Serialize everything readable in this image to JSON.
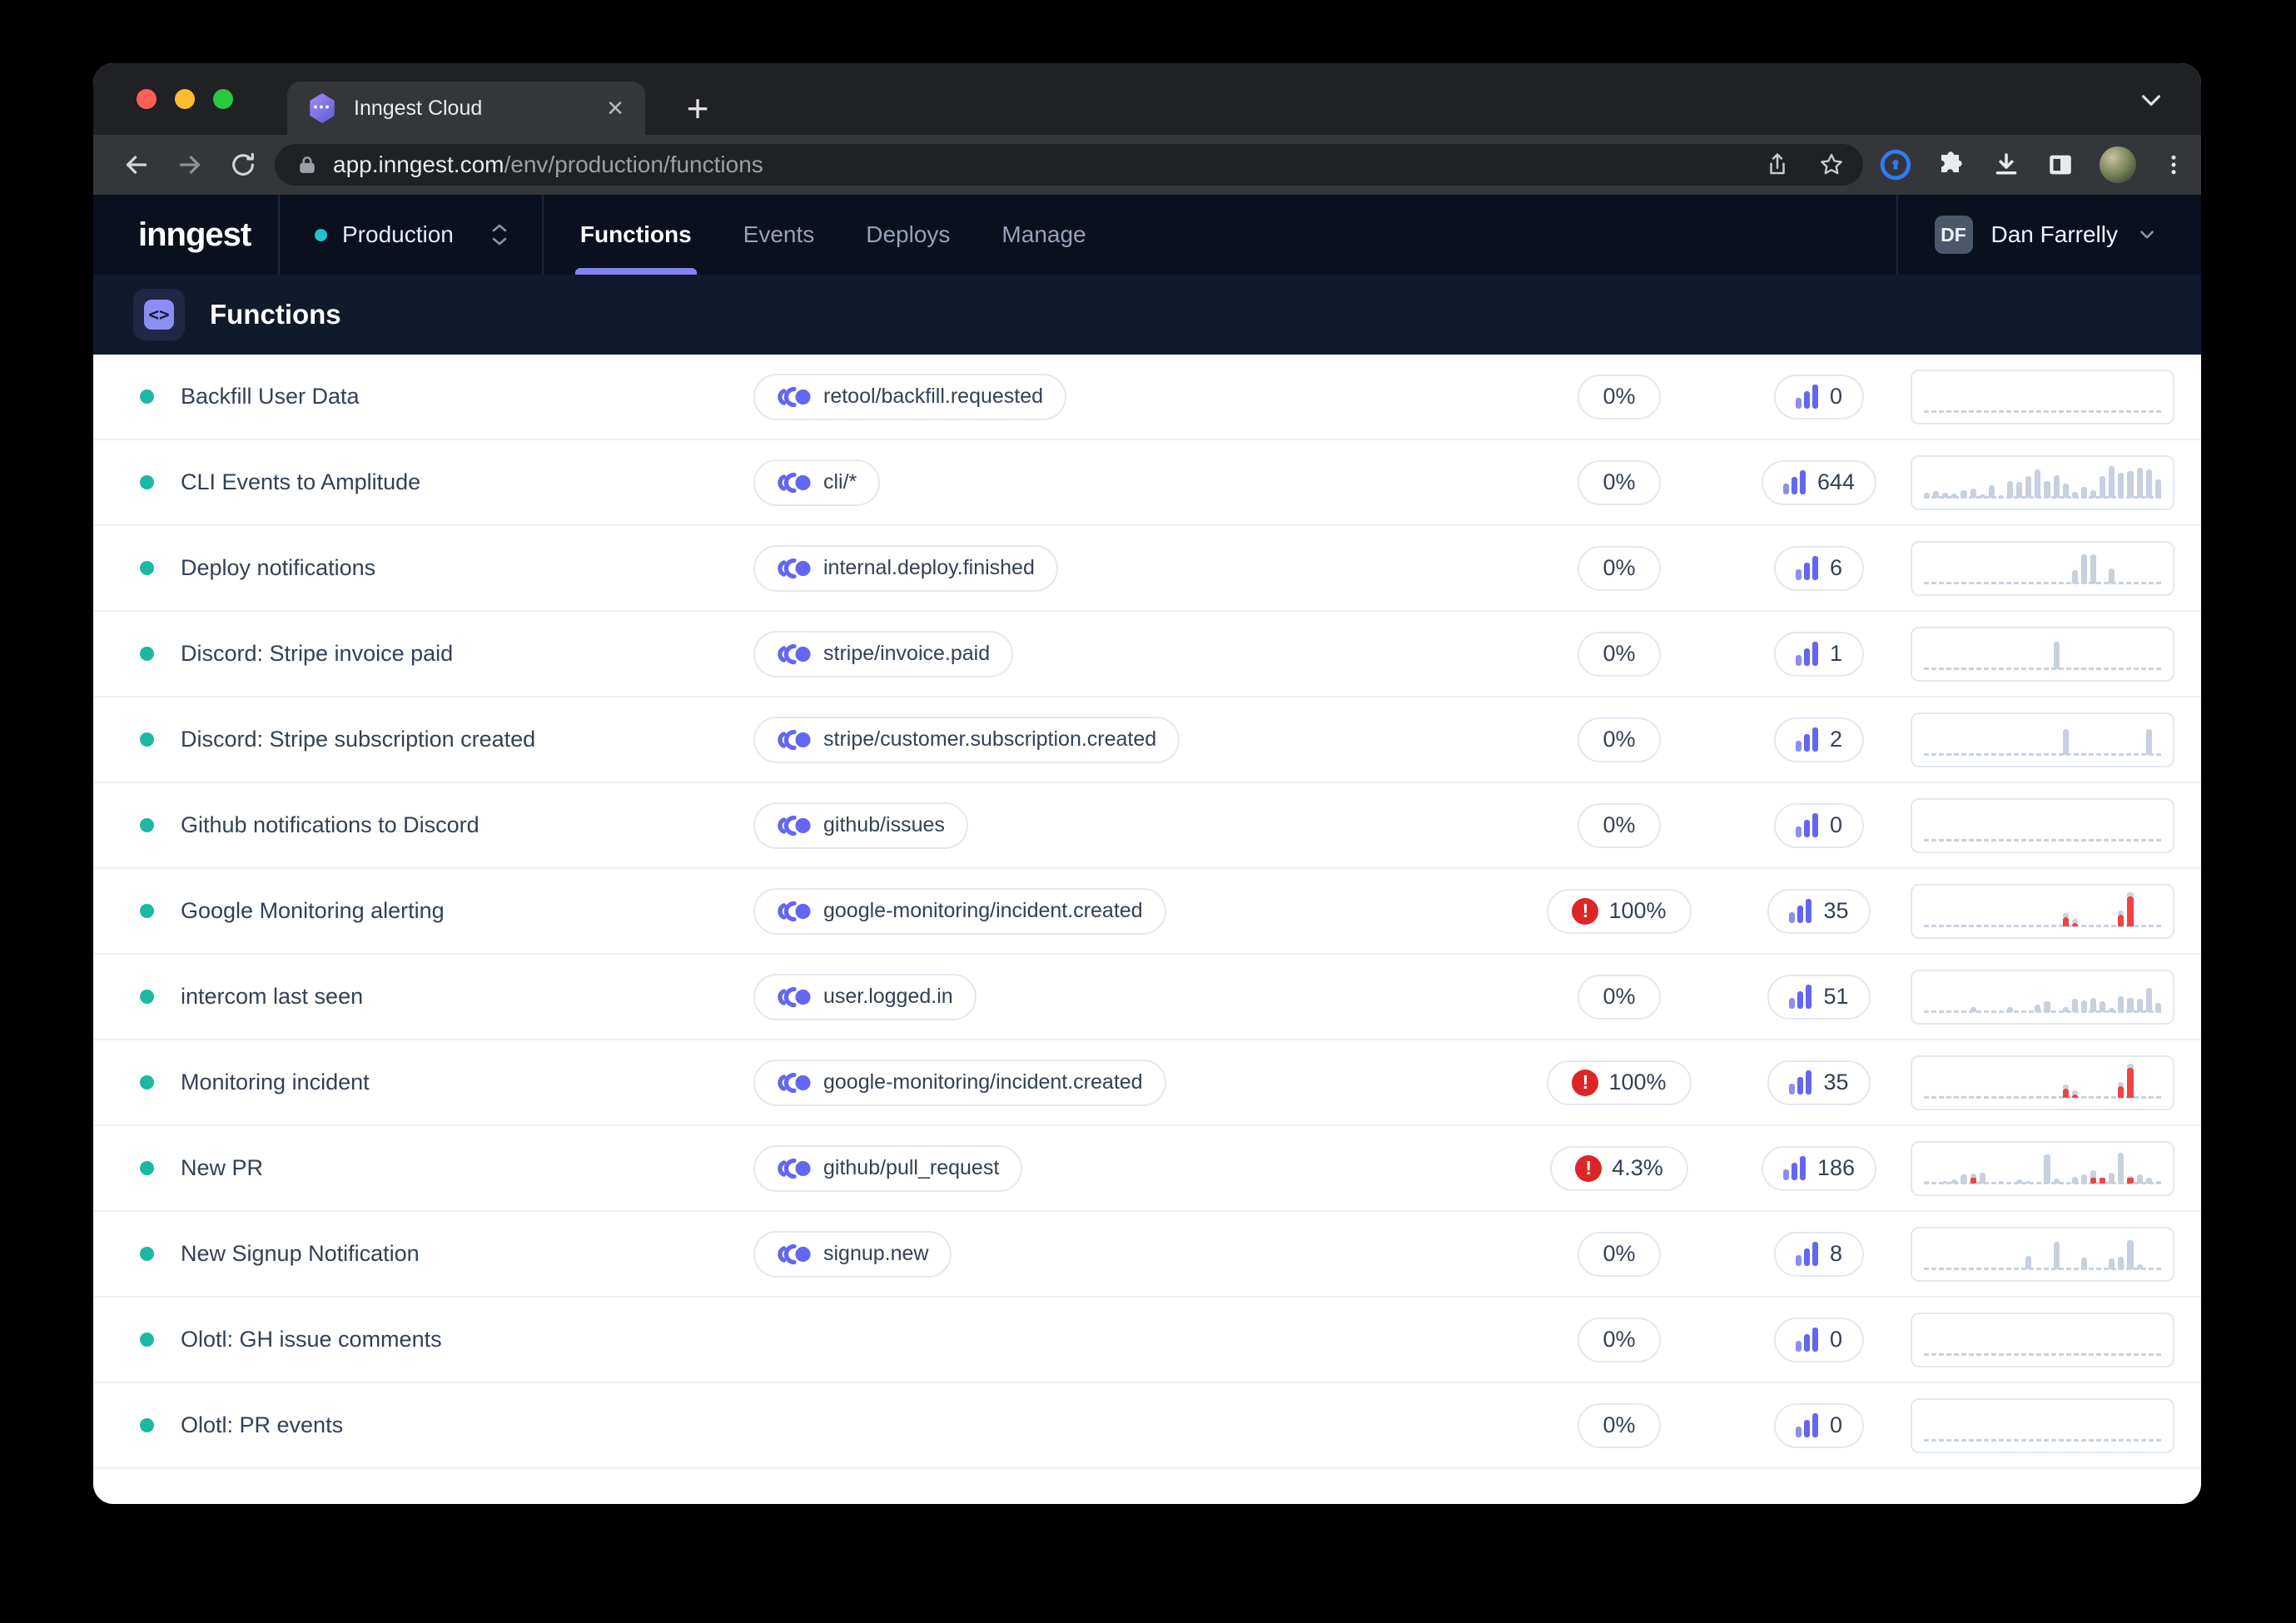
{
  "browser": {
    "tab_title": "Inngest Cloud",
    "url_host": "app.inngest.com",
    "url_path": "/env/production/functions"
  },
  "icons": {
    "close_tab": "×",
    "new_tab": "+",
    "code_glyph": "<>",
    "error_glyph": "!",
    "initials": "DF"
  },
  "header": {
    "logo": "inngest",
    "environment": "Production",
    "nav": [
      {
        "label": "Functions",
        "active": true
      },
      {
        "label": "Events",
        "active": false
      },
      {
        "label": "Deploys",
        "active": false
      },
      {
        "label": "Manage",
        "active": false
      }
    ],
    "user": {
      "initials": "DF",
      "name": "Dan Farrelly"
    }
  },
  "page": {
    "title": "Functions"
  },
  "colors": {
    "accent_indigo": "#6366f1",
    "nav_underline": "#8285f0",
    "status_teal": "#1cb8a0",
    "env_dot": "#1fc3c9",
    "error_red": "#dc2626",
    "spark_fail_red": "#ef4444",
    "spark_gray": "#c7d0de"
  },
  "functions": {
    "rows": [
      {
        "name": "Backfill User Data",
        "event": "retool/backfill.requested",
        "failure_rate": "0%",
        "error": false,
        "count": "0",
        "spark": []
      },
      {
        "name": "CLI Events to Amplitude",
        "event": "cli/*",
        "failure_rate": "0%",
        "error": false,
        "count": "644",
        "spark": [
          14,
          18,
          14,
          10,
          20,
          24,
          8,
          34,
          6,
          46,
          44,
          60,
          80,
          46,
          64,
          40,
          16,
          30,
          20,
          60,
          90,
          70,
          76,
          84,
          80,
          52
        ]
      },
      {
        "name": "Deploy notifications",
        "event": "internal.deploy.finished",
        "failure_rate": "0%",
        "error": false,
        "count": "6",
        "spark": [
          0,
          0,
          0,
          0,
          0,
          0,
          0,
          0,
          0,
          0,
          0,
          0,
          0,
          0,
          0,
          0,
          36,
          82,
          82,
          0,
          42,
          0,
          0,
          0,
          0,
          0
        ]
      },
      {
        "name": "Discord: Stripe invoice paid",
        "event": "stripe/invoice.paid",
        "failure_rate": "0%",
        "error": false,
        "count": "1",
        "spark": [
          0,
          0,
          0,
          0,
          0,
          0,
          0,
          0,
          0,
          0,
          0,
          0,
          0,
          0,
          78,
          0,
          0,
          0,
          0,
          0,
          0,
          0,
          0,
          0,
          0,
          0
        ]
      },
      {
        "name": "Discord: Stripe subscription created",
        "event": "stripe/customer.subscription.created",
        "failure_rate": "0%",
        "error": false,
        "count": "2",
        "spark": [
          0,
          0,
          0,
          0,
          0,
          0,
          0,
          0,
          0,
          0,
          0,
          0,
          0,
          0,
          0,
          72,
          0,
          0,
          0,
          0,
          0,
          0,
          0,
          0,
          72,
          0
        ]
      },
      {
        "name": "Github notifications to Discord",
        "event": "github/issues",
        "failure_rate": "0%",
        "error": false,
        "count": "0",
        "spark": []
      },
      {
        "name": "Google Monitoring alerting",
        "event": "google-monitoring/incident.created",
        "failure_rate": "100%",
        "error": true,
        "count": "35",
        "spark": [
          0,
          0,
          0,
          0,
          0,
          0,
          0,
          0,
          0,
          0,
          0,
          0,
          0,
          0,
          0,
          [
            24,
            "r"
          ],
          [
            8,
            "r"
          ],
          0,
          0,
          0,
          0,
          [
            32,
            "r"
          ],
          [
            85,
            "r"
          ],
          0,
          0,
          0
        ]
      },
      {
        "name": "intercom last seen",
        "event": "user.logged.in",
        "failure_rate": "0%",
        "error": false,
        "count": "51",
        "spark": [
          0,
          0,
          0,
          0,
          0,
          12,
          0,
          0,
          0,
          14,
          0,
          0,
          20,
          30,
          0,
          14,
          38,
          32,
          40,
          30,
          10,
          44,
          40,
          36,
          68,
          24
        ]
      },
      {
        "name": "Monitoring incident",
        "event": "google-monitoring/incident.created",
        "failure_rate": "100%",
        "error": true,
        "count": "35",
        "spark": [
          0,
          0,
          0,
          0,
          0,
          0,
          0,
          0,
          0,
          0,
          0,
          0,
          0,
          0,
          0,
          [
            24,
            "r"
          ],
          [
            8,
            "r"
          ],
          0,
          0,
          0,
          0,
          [
            32,
            "r"
          ],
          [
            85,
            "r"
          ],
          0,
          0,
          0
        ]
      },
      {
        "name": "New PR",
        "event": "github/pull_request",
        "failure_rate": "4.3%",
        "error": true,
        "count": "186",
        "spark": [
          6,
          0,
          6,
          10,
          26,
          [
            28,
            "rb"
          ],
          30,
          0,
          6,
          0,
          10,
          6,
          0,
          82,
          12,
          0,
          18,
          24,
          [
            36,
            "rb"
          ],
          [
            10,
            "rb"
          ],
          30,
          86,
          [
            20,
            "rb"
          ],
          24,
          16,
          6
        ]
      },
      {
        "name": "New Signup Notification",
        "event": "signup.new",
        "failure_rate": "0%",
        "error": false,
        "count": "8",
        "spark": [
          0,
          0,
          0,
          0,
          0,
          0,
          0,
          0,
          0,
          0,
          0,
          38,
          0,
          0,
          78,
          0,
          0,
          32,
          0,
          0,
          30,
          34,
          82,
          12,
          0,
          0
        ]
      },
      {
        "name": "Olotl: GH issue comments",
        "event": "",
        "failure_rate": "0%",
        "error": false,
        "count": "0",
        "spark": []
      },
      {
        "name": "Olotl: PR events",
        "event": "",
        "failure_rate": "0%",
        "error": false,
        "count": "0",
        "spark": []
      }
    ]
  }
}
